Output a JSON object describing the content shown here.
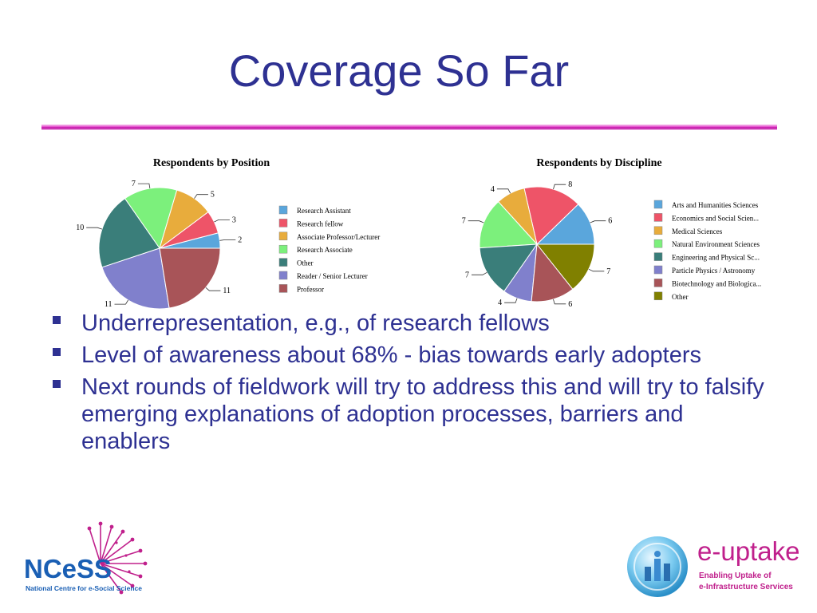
{
  "slide": {
    "title": "Coverage So Far",
    "bullets": [
      "Underrepresentation, e.g.,  of research fellows",
      "Level of awareness about 68% - bias towards early adopters",
      "Next rounds of fieldwork will try to address this and will try to falsify emerging explanations of adoption processes, barriers and enablers"
    ],
    "bullet_color": "#2e3192"
  },
  "logos": {
    "ncess": {
      "wordmark": "NCeSS",
      "tagline": "National Centre for e-Social Science"
    },
    "euptake": {
      "wordmark": "e-uptake",
      "tagline_line1": "Enabling Uptake of",
      "tagline_line2": "e-Infrastructure Services"
    }
  },
  "chart_data": [
    {
      "type": "pie",
      "title": "Respondents by Position",
      "legend_placement": "right",
      "slices": [
        {
          "label": "Research Assistant",
          "value": 2,
          "color": "#5aa6dc"
        },
        {
          "label": "Research fellow",
          "value": 3,
          "color": "#ee5468"
        },
        {
          "label": "Associate Professor/Lecturer",
          "value": 5,
          "color": "#e8ac3c"
        },
        {
          "label": "Research Associate",
          "value": 7,
          "color": "#7cf07c"
        },
        {
          "label": "Other",
          "value": 10,
          "color": "#3a7e7a"
        },
        {
          "label": "Reader / Senior Lecturer",
          "value": 11,
          "color": "#8080cc"
        },
        {
          "label": "Professor",
          "value": 11,
          "color": "#a85458"
        }
      ]
    },
    {
      "type": "pie",
      "title": "Respondents by Discipline",
      "legend_placement": "right",
      "slices": [
        {
          "label": "Arts and Humanities Sciences",
          "value": 6,
          "color": "#5aa6dc"
        },
        {
          "label": "Economics and Social Scien...",
          "value": 8,
          "color": "#ee5468"
        },
        {
          "label": "Medical Sciences",
          "value": 4,
          "color": "#e8ac3c"
        },
        {
          "label": "Natural Environment Sciences",
          "value": 7,
          "color": "#7cf07c"
        },
        {
          "label": "Engineering and Physical Sc...",
          "value": 7,
          "color": "#3a7e7a"
        },
        {
          "label": "Particle Physics / Astronomy",
          "value": 4,
          "color": "#8080cc"
        },
        {
          "label": "Biotechnology and Biologica...",
          "value": 6,
          "color": "#a85458"
        },
        {
          "label": "Other",
          "value": 7,
          "color": "#808000"
        }
      ]
    }
  ]
}
